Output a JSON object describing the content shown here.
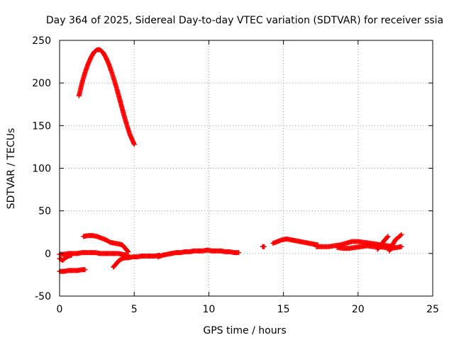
{
  "chart_data": {
    "type": "scatter",
    "title": "Day 364 of 2025, Sidereal Day-to-day VTEC variation (SDTVAR) for receiver ssia",
    "xlabel": "GPS time / hours",
    "ylabel": "SDTVAR / TECUs",
    "xlim": [
      0,
      25
    ],
    "ylim": [
      -50,
      250
    ],
    "x_ticks": [
      0,
      5,
      10,
      15,
      20,
      25
    ],
    "y_ticks": [
      -50,
      0,
      50,
      100,
      150,
      200,
      250
    ],
    "grid": true,
    "marker": "+",
    "color": "#ff0000",
    "segments": [
      {
        "points": [
          [
            1.3,
            185
          ],
          [
            1.5,
            200
          ],
          [
            1.7,
            212
          ],
          [
            1.9,
            222
          ],
          [
            2.1,
            230
          ],
          [
            2.3,
            236
          ],
          [
            2.5,
            239
          ],
          [
            2.7,
            239
          ],
          [
            2.9,
            236
          ],
          [
            3.1,
            230
          ],
          [
            3.3,
            222
          ],
          [
            3.5,
            212
          ],
          [
            3.7,
            201
          ],
          [
            3.9,
            189
          ],
          [
            4.1,
            176
          ],
          [
            4.3,
            163
          ],
          [
            4.5,
            151
          ],
          [
            4.7,
            140
          ],
          [
            4.9,
            132
          ],
          [
            5.0,
            128
          ]
        ]
      },
      {
        "points": [
          [
            0,
            -1
          ],
          [
            0.3,
            -1
          ],
          [
            0.6,
            0
          ],
          [
            0.9,
            0
          ],
          [
            1.2,
            0
          ],
          [
            1.5,
            1
          ],
          [
            1.8,
            1
          ],
          [
            2.1,
            1
          ],
          [
            2.4,
            1
          ],
          [
            2.7,
            0
          ],
          [
            3.0,
            0
          ],
          [
            3.3,
            0
          ],
          [
            3.6,
            0
          ],
          [
            3.9,
            0
          ],
          [
            4.2,
            -1
          ],
          [
            4.6,
            -2
          ]
        ]
      },
      {
        "points": [
          [
            0,
            -6
          ],
          [
            0.2,
            -8
          ],
          [
            0.4,
            -5
          ],
          [
            0.6,
            -3
          ],
          [
            0.8,
            -2
          ]
        ]
      },
      {
        "points": [
          [
            0,
            -21
          ],
          [
            0.3,
            -21
          ],
          [
            0.6,
            -20
          ],
          [
            0.9,
            -20
          ],
          [
            1.2,
            -20
          ],
          [
            1.5,
            -19
          ],
          [
            1.7,
            -19
          ]
        ]
      },
      {
        "points": [
          [
            1.6,
            20
          ],
          [
            1.9,
            21
          ],
          [
            2.2,
            21
          ],
          [
            2.5,
            20
          ],
          [
            2.8,
            18
          ],
          [
            3.1,
            16
          ],
          [
            3.4,
            13
          ],
          [
            3.7,
            12
          ],
          [
            4.0,
            11
          ],
          [
            4.2,
            10
          ],
          [
            4.4,
            6
          ],
          [
            4.6,
            2
          ]
        ]
      },
      {
        "points": [
          [
            3.6,
            -16
          ],
          [
            3.8,
            -12
          ],
          [
            4.0,
            -8
          ],
          [
            4.2,
            -6
          ],
          [
            4.4,
            -5
          ],
          [
            4.6,
            -5
          ],
          [
            4.9,
            -4
          ],
          [
            5.2,
            -4
          ],
          [
            5.5,
            -3
          ],
          [
            5.8,
            -3
          ],
          [
            6.1,
            -3
          ],
          [
            6.4,
            -3
          ],
          [
            6.7,
            -2
          ]
        ]
      },
      {
        "points": [
          [
            6.6,
            -4
          ],
          [
            6.9,
            -2
          ],
          [
            7.2,
            -1
          ],
          [
            7.5,
            0
          ],
          [
            7.8,
            1
          ],
          [
            8.1,
            1
          ],
          [
            8.4,
            2
          ],
          [
            8.7,
            2
          ],
          [
            9.0,
            3
          ],
          [
            9.3,
            3
          ],
          [
            9.6,
            3
          ],
          [
            9.9,
            4
          ],
          [
            10.2,
            3
          ],
          [
            10.5,
            3
          ],
          [
            10.8,
            3
          ],
          [
            11.1,
            2
          ],
          [
            11.4,
            2
          ],
          [
            11.7,
            1
          ],
          [
            12.0,
            1
          ]
        ]
      },
      {
        "points": [
          [
            13.6,
            8
          ],
          [
            13.7,
            8
          ]
        ]
      },
      {
        "points": [
          [
            14.3,
            12
          ],
          [
            14.6,
            14
          ],
          [
            14.9,
            16
          ],
          [
            15.2,
            17
          ],
          [
            15.5,
            16
          ],
          [
            15.8,
            15
          ],
          [
            16.1,
            14
          ],
          [
            16.4,
            13
          ],
          [
            16.7,
            12
          ],
          [
            17.0,
            11
          ],
          [
            17.3,
            10
          ]
        ]
      },
      {
        "points": [
          [
            17.2,
            8
          ],
          [
            17.6,
            8
          ],
          [
            18.0,
            8
          ],
          [
            18.4,
            9
          ],
          [
            18.8,
            10
          ],
          [
            19.2,
            12
          ],
          [
            19.6,
            14
          ],
          [
            20.0,
            14
          ],
          [
            20.4,
            13
          ],
          [
            20.8,
            12
          ],
          [
            21.2,
            11
          ],
          [
            21.6,
            10
          ],
          [
            22.0,
            9
          ],
          [
            22.3,
            8
          ]
        ]
      },
      {
        "points": [
          [
            18.6,
            7
          ],
          [
            19.0,
            6
          ],
          [
            19.4,
            6
          ],
          [
            19.8,
            7
          ],
          [
            20.2,
            8
          ],
          [
            20.6,
            9
          ],
          [
            21.0,
            8
          ],
          [
            21.4,
            8
          ],
          [
            21.8,
            7
          ],
          [
            22.2,
            6
          ],
          [
            22.6,
            7
          ],
          [
            22.9,
            8
          ]
        ]
      },
      {
        "points": [
          [
            21.3,
            5
          ],
          [
            21.5,
            9
          ],
          [
            21.7,
            14
          ],
          [
            21.9,
            18
          ],
          [
            22.0,
            20
          ]
        ]
      },
      {
        "points": [
          [
            22.1,
            3
          ],
          [
            22.3,
            10
          ],
          [
            22.5,
            16
          ],
          [
            22.7,
            19
          ],
          [
            22.9,
            22
          ]
        ]
      }
    ]
  }
}
